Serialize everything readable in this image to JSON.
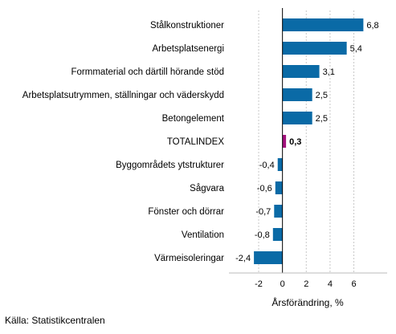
{
  "chart_data": {
    "type": "bar",
    "orientation": "horizontal",
    "categories": [
      "Stålkonstruktioner",
      "Arbetsplatsenergi",
      "Formmaterial och därtill hörande stöd",
      "Arbetsplatsutrymmen, ställningar och väderskydd",
      "Betongelement",
      "TOTALINDEX",
      "Byggområdets ytstrukturer",
      "Sågvara",
      "Fönster och dörrar",
      "Ventilation",
      "Värmeisoleringar"
    ],
    "values": [
      6.8,
      5.4,
      3.1,
      2.5,
      2.5,
      0.3,
      -0.4,
      -0.6,
      -0.7,
      -0.8,
      -2.4
    ],
    "value_labels": [
      "6,8",
      "5,4",
      "3,1",
      "2,5",
      "2,5",
      "0,3",
      "-0,4",
      "-0,6",
      "-0,7",
      "-0,8",
      "-2,4"
    ],
    "highlight_category": "TOTALINDEX",
    "xlabel": "Årsförändring, %",
    "ylabel": "",
    "xlim": [
      -4.5,
      8.8
    ],
    "x_ticks": [
      -2,
      0,
      2,
      4,
      6
    ],
    "x_tick_labels": [
      "-2",
      "0",
      "2",
      "4",
      "6"
    ],
    "grid": "vertical dashed",
    "colors": {
      "bar": "#0a6aa6",
      "highlight": "#a3117d",
      "grid": "#c8c8c8"
    }
  },
  "source": "Källa: Statistikcentralen"
}
